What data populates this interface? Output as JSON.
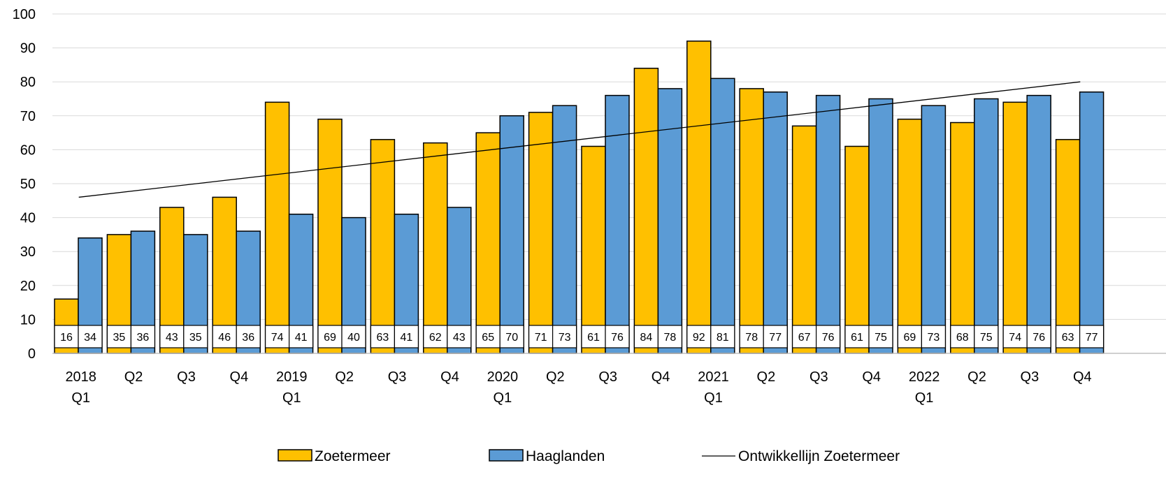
{
  "chart_data": {
    "type": "bar",
    "ylim": [
      0,
      100
    ],
    "yticks": [
      0,
      10,
      20,
      30,
      40,
      50,
      60,
      70,
      80,
      90,
      100
    ],
    "grid": true,
    "legend_position": "bottom",
    "category_labels": [
      [
        "2018",
        "Q1"
      ],
      [
        "Q2"
      ],
      [
        "Q3"
      ],
      [
        "Q4"
      ],
      [
        "2019",
        "Q1"
      ],
      [
        "Q2"
      ],
      [
        "Q3"
      ],
      [
        "Q4"
      ],
      [
        "2020",
        "Q1"
      ],
      [
        "Q2"
      ],
      [
        "Q3"
      ],
      [
        "Q4"
      ],
      [
        "2021",
        "Q1"
      ],
      [
        "Q2"
      ],
      [
        "Q3"
      ],
      [
        "Q4"
      ],
      [
        "2022",
        "Q1"
      ],
      [
        "Q2"
      ],
      [
        "Q3"
      ],
      [
        "Q4"
      ]
    ],
    "series": [
      {
        "name": "Zoetermeer",
        "type": "bar",
        "color": "#FFC000",
        "values": [
          16,
          35,
          43,
          46,
          74,
          69,
          63,
          62,
          65,
          71,
          61,
          84,
          92,
          78,
          67,
          61,
          69,
          68,
          74,
          63
        ]
      },
      {
        "name": "Haaglanden",
        "type": "bar",
        "color": "#5B9BD5",
        "values": [
          34,
          36,
          35,
          36,
          41,
          40,
          41,
          43,
          70,
          73,
          76,
          78,
          81,
          77,
          76,
          75,
          73,
          75,
          76,
          77
        ]
      },
      {
        "name": "Ontwikkellijn Zoetermeer",
        "type": "line",
        "color": "#000000",
        "start": 46,
        "end": 80
      }
    ]
  }
}
